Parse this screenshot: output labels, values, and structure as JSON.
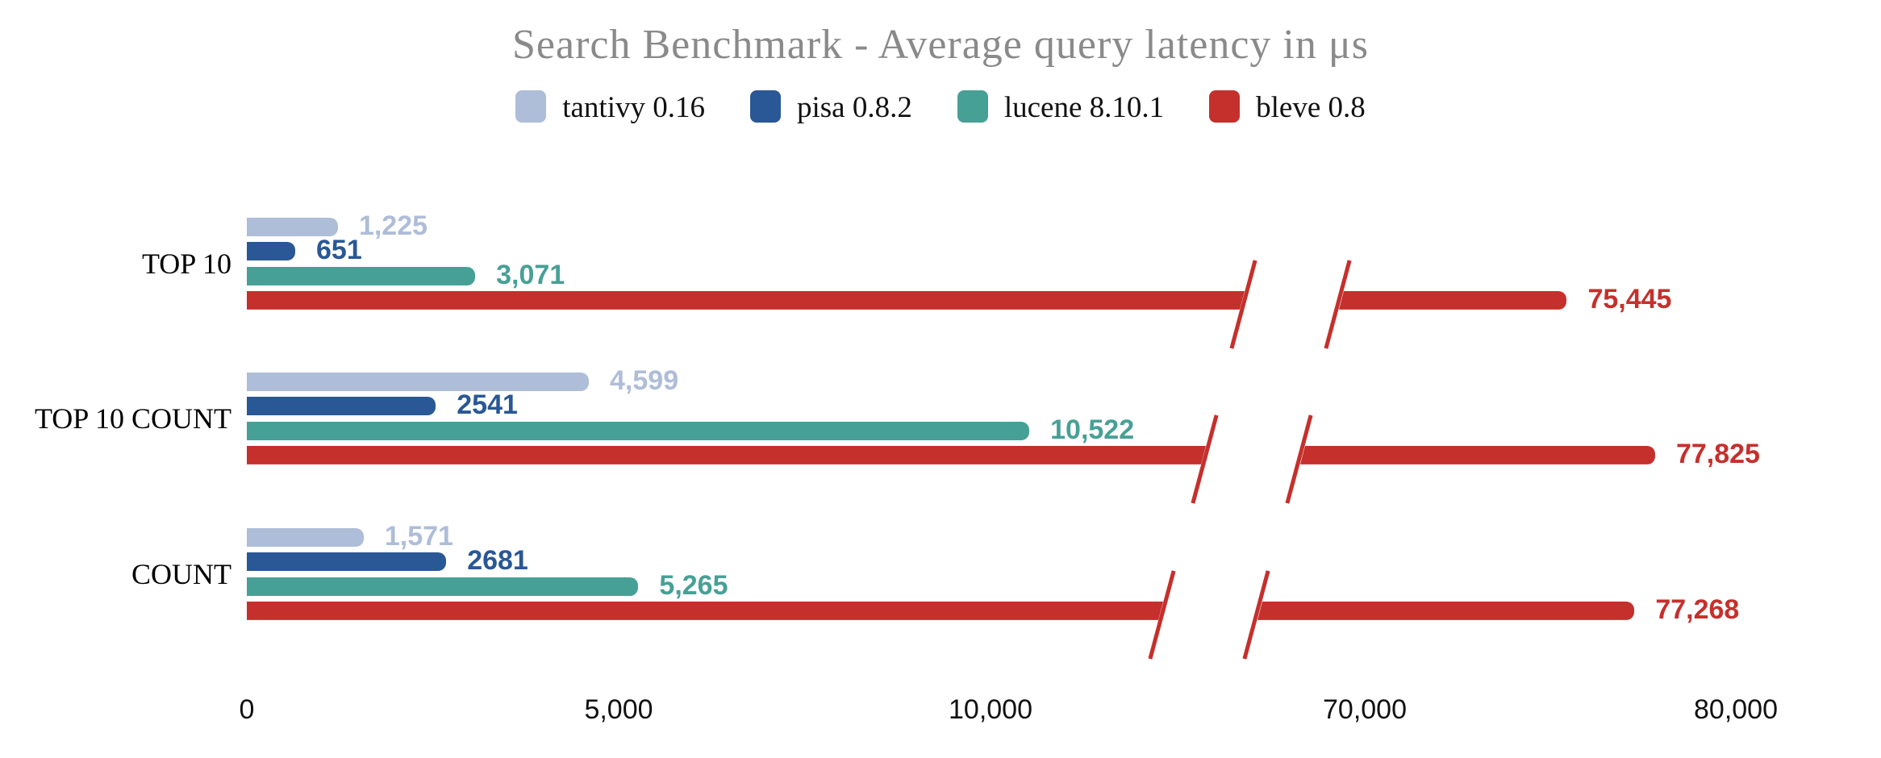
{
  "title": "Search Benchmark - Average query latency in μs",
  "legend": [
    {
      "label": "tantivy 0.16",
      "color": "#aebdd8"
    },
    {
      "label": "pisa 0.8.2",
      "color": "#2a5795"
    },
    {
      "label": "lucene 8.10.1",
      "color": "#47a096"
    },
    {
      "label": "bleve 0.8",
      "color": "#c5302c"
    }
  ],
  "chart_data": {
    "type": "bar",
    "orientation": "horizontal",
    "title": "Search Benchmark - Average query latency in μs",
    "categories": [
      "TOP 10",
      "TOP 10 COUNT",
      "COUNT"
    ],
    "series": [
      {
        "name": "tantivy 0.16",
        "color": "#aebdd8",
        "values": [
          1225,
          4599,
          1571
        ],
        "labels": [
          "1,225",
          "4,599",
          "1,571"
        ]
      },
      {
        "name": "pisa 0.8.2",
        "color": "#2a5795",
        "values": [
          651,
          2541,
          2681
        ],
        "labels": [
          "651",
          "2541",
          "2681"
        ]
      },
      {
        "name": "lucene 8.10.1",
        "color": "#47a096",
        "values": [
          3071,
          10522,
          5265
        ],
        "labels": [
          "3,071",
          "10,522",
          "5,265"
        ]
      },
      {
        "name": "bleve 0.8",
        "color": "#c5302c",
        "values": [
          75445,
          77825,
          77268
        ],
        "labels": [
          "75,445",
          "77,825",
          "77,268"
        ]
      }
    ],
    "x_axis": {
      "ticks": [
        {
          "value": 0,
          "label": "0"
        },
        {
          "value": 5000,
          "label": "5,000"
        },
        {
          "value": 10000,
          "label": "10,000"
        },
        {
          "value": 70000,
          "label": "70,000"
        },
        {
          "value": 80000,
          "label": "80,000"
        }
      ],
      "axis_break": {
        "between": [
          10000,
          70000
        ]
      },
      "unit": "μs",
      "grid": false
    },
    "legend_position": "top",
    "value_labels": "end-of-bar"
  }
}
